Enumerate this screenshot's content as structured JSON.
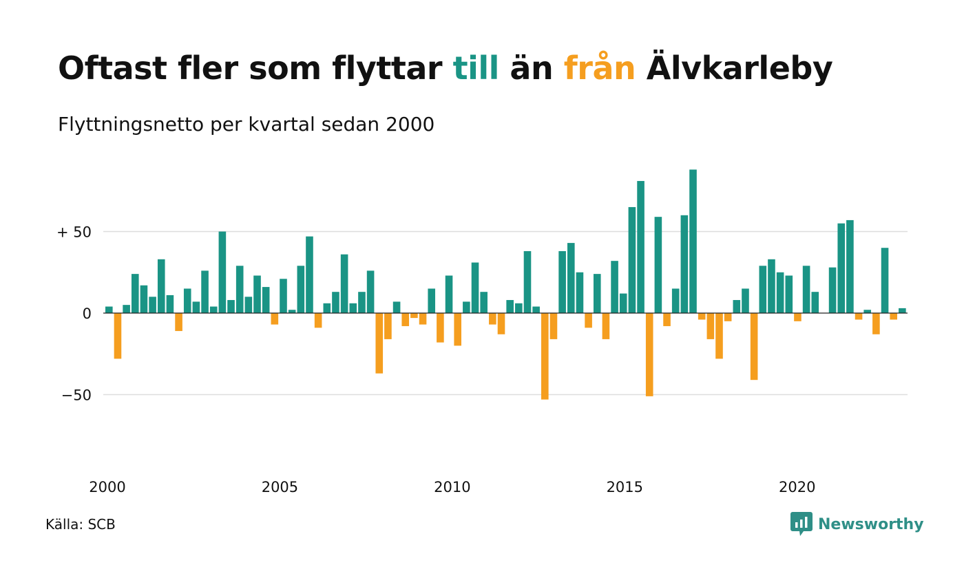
{
  "title": {
    "part1": "Oftast fler som flyttar ",
    "part2": "till",
    "part3": " än ",
    "part4": "från",
    "part5": " Älvkarleby"
  },
  "subtitle": "Flyttningsnetto per kvartal sedan 2000",
  "source": "Källa: SCB",
  "logo": {
    "text": "Newsworthy",
    "icon": "newsworthy-logo-icon"
  },
  "colors": {
    "positive": "#1a9485",
    "negative": "#f59e1f",
    "text": "#111111",
    "logo": "#2f8f87"
  },
  "chart_data": {
    "type": "bar",
    "title": "Oftast fler som flyttar till än från Älvkarleby",
    "subtitle": "Flyttningsnetto per kvartal sedan 2000",
    "xlabel": "",
    "ylabel": "",
    "x_ticks": [
      {
        "value": 2000,
        "label": "2000"
      },
      {
        "value": 2005,
        "label": "2005"
      },
      {
        "value": 2010,
        "label": "2010"
      },
      {
        "value": 2015,
        "label": "2015"
      },
      {
        "value": 2020,
        "label": "2020"
      }
    ],
    "y_ticks": [
      {
        "value": 50,
        "label": "+ 50"
      },
      {
        "value": 0,
        "label": "0"
      },
      {
        "value": -50,
        "label": "−50"
      }
    ],
    "ylim": [
      -85,
      95
    ],
    "xlim": [
      1999.88,
      2023.2
    ],
    "grid": true,
    "series": [
      {
        "period_start": "2000 Q1",
        "frequency": "quarter",
        "values": [
          4,
          -28,
          5,
          24,
          17,
          10,
          33,
          11,
          -11,
          15,
          7,
          26,
          4,
          50,
          8,
          29,
          10,
          23,
          16,
          -7,
          21,
          2,
          29,
          47,
          -9,
          6,
          13,
          36,
          6,
          13,
          26,
          -37,
          -16,
          7,
          -8,
          -3,
          -7,
          15,
          -18,
          23,
          -20,
          7,
          31,
          13,
          -7,
          -13,
          8,
          6,
          38,
          4,
          -53,
          -16,
          38,
          43,
          25,
          -9,
          24,
          -16,
          32,
          12,
          65,
          81,
          -51,
          59,
          -8,
          15,
          60,
          88,
          -4,
          -16,
          -28,
          -5,
          8,
          15,
          -41,
          29,
          33,
          25,
          23,
          -5,
          29,
          13,
          0,
          28,
          55,
          57,
          -4,
          2,
          -13,
          40,
          -4,
          3
        ]
      }
    ]
  }
}
